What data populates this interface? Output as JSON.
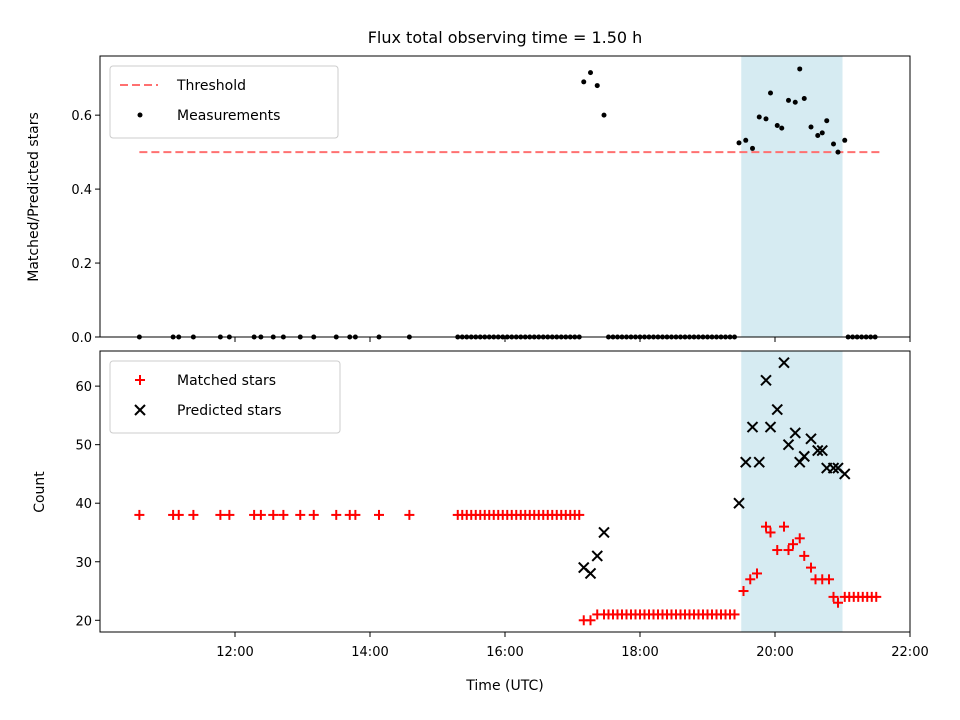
{
  "colors": {
    "threshold": "#ff7070",
    "measurement": "#000000",
    "matched": "#ff0000",
    "predicted": "#000000",
    "highlight": "#add8e6"
  },
  "chart_data": [
    {
      "type": "scatter",
      "title": "Flux total observing time = 1.50 h",
      "ylabel": "Matched/Predicted stars",
      "xlim": [
        "10:00",
        "22:00"
      ],
      "ylim": [
        0,
        0.76
      ],
      "y_ticks": [
        "0.0",
        "0.2",
        "0.4",
        "0.6"
      ],
      "legend_position": "top-left",
      "highlight_span": [
        "19:30",
        "21:00"
      ],
      "threshold": {
        "name": "Threshold",
        "value": 0.5,
        "x_range": [
          "10:35",
          "21:35"
        ]
      },
      "series": [
        {
          "name": "Measurements",
          "marker": "dot",
          "points": [
            [
              "10:35",
              0
            ],
            [
              "11:05",
              0
            ],
            [
              "11:10",
              0
            ],
            [
              "11:23",
              0
            ],
            [
              "11:47",
              0
            ],
            [
              "11:55",
              0
            ],
            [
              "12:17",
              0
            ],
            [
              "12:23",
              0
            ],
            [
              "12:34",
              0
            ],
            [
              "12:43",
              0
            ],
            [
              "12:58",
              0
            ],
            [
              "13:10",
              0
            ],
            [
              "13:30",
              0
            ],
            [
              "13:42",
              0
            ],
            [
              "13:47",
              0
            ],
            [
              "14:08",
              0
            ],
            [
              "14:35",
              0
            ],
            [
              "15:18",
              0
            ],
            [
              "15:22",
              0
            ],
            [
              "15:26",
              0
            ],
            [
              "15:30",
              0
            ],
            [
              "15:34",
              0
            ],
            [
              "15:38",
              0
            ],
            [
              "15:42",
              0
            ],
            [
              "15:46",
              0
            ],
            [
              "15:50",
              0
            ],
            [
              "15:54",
              0
            ],
            [
              "15:58",
              0
            ],
            [
              "16:02",
              0
            ],
            [
              "16:06",
              0
            ],
            [
              "16:10",
              0
            ],
            [
              "16:14",
              0
            ],
            [
              "16:18",
              0
            ],
            [
              "16:22",
              0
            ],
            [
              "16:26",
              0
            ],
            [
              "16:30",
              0
            ],
            [
              "16:34",
              0
            ],
            [
              "16:38",
              0
            ],
            [
              "16:42",
              0
            ],
            [
              "16:46",
              0
            ],
            [
              "16:50",
              0
            ],
            [
              "16:54",
              0
            ],
            [
              "16:58",
              0
            ],
            [
              "17:02",
              0
            ],
            [
              "17:06",
              0
            ],
            [
              "17:10",
              0.69
            ],
            [
              "17:16",
              0.715
            ],
            [
              "17:22",
              0.68
            ],
            [
              "17:28",
              0.6
            ],
            [
              "17:32",
              0
            ],
            [
              "17:36",
              0
            ],
            [
              "17:40",
              0
            ],
            [
              "17:44",
              0
            ],
            [
              "17:48",
              0
            ],
            [
              "17:52",
              0
            ],
            [
              "17:56",
              0
            ],
            [
              "18:00",
              0
            ],
            [
              "18:04",
              0
            ],
            [
              "18:08",
              0
            ],
            [
              "18:12",
              0
            ],
            [
              "18:16",
              0
            ],
            [
              "18:20",
              0
            ],
            [
              "18:24",
              0
            ],
            [
              "18:28",
              0
            ],
            [
              "18:32",
              0
            ],
            [
              "18:36",
              0
            ],
            [
              "18:40",
              0
            ],
            [
              "18:44",
              0
            ],
            [
              "18:48",
              0
            ],
            [
              "18:52",
              0
            ],
            [
              "18:56",
              0
            ],
            [
              "19:00",
              0
            ],
            [
              "19:04",
              0
            ],
            [
              "19:08",
              0
            ],
            [
              "19:12",
              0
            ],
            [
              "19:16",
              0
            ],
            [
              "19:20",
              0
            ],
            [
              "19:24",
              0
            ],
            [
              "19:28",
              0.525
            ],
            [
              "19:34",
              0.532
            ],
            [
              "19:40",
              0.51
            ],
            [
              "19:46",
              0.595
            ],
            [
              "19:52",
              0.59
            ],
            [
              "19:56",
              0.66
            ],
            [
              "20:02",
              0.572
            ],
            [
              "20:06",
              0.565
            ],
            [
              "20:12",
              0.64
            ],
            [
              "20:18",
              0.635
            ],
            [
              "20:22",
              0.725
            ],
            [
              "20:26",
              0.645
            ],
            [
              "20:32",
              0.568
            ],
            [
              "20:38",
              0.545
            ],
            [
              "20:42",
              0.552
            ],
            [
              "20:46",
              0.585
            ],
            [
              "20:52",
              0.522
            ],
            [
              "20:56",
              0.5
            ],
            [
              "21:02",
              0.532
            ],
            [
              "21:05",
              0
            ],
            [
              "21:09",
              0
            ],
            [
              "21:13",
              0
            ],
            [
              "21:17",
              0
            ],
            [
              "21:21",
              0
            ],
            [
              "21:25",
              0
            ],
            [
              "21:29",
              0
            ]
          ]
        }
      ]
    },
    {
      "type": "scatter",
      "xlabel": "Time (UTC)",
      "ylabel": "Count",
      "xlim": [
        "10:00",
        "22:00"
      ],
      "ylim": [
        18,
        66
      ],
      "x_ticks": [
        "12:00",
        "14:00",
        "16:00",
        "18:00",
        "20:00",
        "22:00"
      ],
      "y_ticks": [
        "20",
        "30",
        "40",
        "50",
        "60"
      ],
      "legend_position": "top-left",
      "highlight_span": [
        "19:30",
        "21:00"
      ],
      "series": [
        {
          "name": "Matched stars",
          "marker": "plus",
          "points": [
            [
              "10:35",
              38
            ],
            [
              "11:05",
              38
            ],
            [
              "11:10",
              38
            ],
            [
              "11:23",
              38
            ],
            [
              "11:47",
              38
            ],
            [
              "11:55",
              38
            ],
            [
              "12:17",
              38
            ],
            [
              "12:23",
              38
            ],
            [
              "12:34",
              38
            ],
            [
              "12:43",
              38
            ],
            [
              "12:58",
              38
            ],
            [
              "13:10",
              38
            ],
            [
              "13:30",
              38
            ],
            [
              "13:42",
              38
            ],
            [
              "13:47",
              38
            ],
            [
              "14:08",
              38
            ],
            [
              "14:35",
              38
            ],
            [
              "15:18",
              38
            ],
            [
              "15:22",
              38
            ],
            [
              "15:26",
              38
            ],
            [
              "15:30",
              38
            ],
            [
              "15:34",
              38
            ],
            [
              "15:38",
              38
            ],
            [
              "15:42",
              38
            ],
            [
              "15:46",
              38
            ],
            [
              "15:50",
              38
            ],
            [
              "15:54",
              38
            ],
            [
              "15:58",
              38
            ],
            [
              "16:02",
              38
            ],
            [
              "16:06",
              38
            ],
            [
              "16:10",
              38
            ],
            [
              "16:14",
              38
            ],
            [
              "16:18",
              38
            ],
            [
              "16:22",
              38
            ],
            [
              "16:26",
              38
            ],
            [
              "16:30",
              38
            ],
            [
              "16:34",
              38
            ],
            [
              "16:38",
              38
            ],
            [
              "16:42",
              38
            ],
            [
              "16:46",
              38
            ],
            [
              "16:50",
              38
            ],
            [
              "16:54",
              38
            ],
            [
              "16:58",
              38
            ],
            [
              "17:02",
              38
            ],
            [
              "17:06",
              38
            ],
            [
              "17:10",
              20
            ],
            [
              "17:16",
              20
            ],
            [
              "17:22",
              21
            ],
            [
              "17:28",
              21
            ],
            [
              "17:32",
              21
            ],
            [
              "17:36",
              21
            ],
            [
              "17:40",
              21
            ],
            [
              "17:44",
              21
            ],
            [
              "17:48",
              21
            ],
            [
              "17:52",
              21
            ],
            [
              "17:56",
              21
            ],
            [
              "18:00",
              21
            ],
            [
              "18:04",
              21
            ],
            [
              "18:08",
              21
            ],
            [
              "18:12",
              21
            ],
            [
              "18:16",
              21
            ],
            [
              "18:20",
              21
            ],
            [
              "18:24",
              21
            ],
            [
              "18:28",
              21
            ],
            [
              "18:32",
              21
            ],
            [
              "18:36",
              21
            ],
            [
              "18:40",
              21
            ],
            [
              "18:44",
              21
            ],
            [
              "18:48",
              21
            ],
            [
              "18:52",
              21
            ],
            [
              "18:56",
              21
            ],
            [
              "19:00",
              21
            ],
            [
              "19:04",
              21
            ],
            [
              "19:08",
              21
            ],
            [
              "19:12",
              21
            ],
            [
              "19:16",
              21
            ],
            [
              "19:20",
              21
            ],
            [
              "19:24",
              21
            ],
            [
              "19:32",
              25
            ],
            [
              "19:38",
              27
            ],
            [
              "19:44",
              28
            ],
            [
              "19:52",
              36
            ],
            [
              "19:56",
              35
            ],
            [
              "20:02",
              32
            ],
            [
              "20:08",
              36
            ],
            [
              "20:12",
              32
            ],
            [
              "20:16",
              33
            ],
            [
              "20:22",
              34
            ],
            [
              "20:26",
              31
            ],
            [
              "20:32",
              29
            ],
            [
              "20:36",
              27
            ],
            [
              "20:42",
              27
            ],
            [
              "20:48",
              27
            ],
            [
              "20:52",
              24
            ],
            [
              "20:56",
              23
            ],
            [
              "21:02",
              24
            ],
            [
              "21:06",
              24
            ],
            [
              "21:10",
              24
            ],
            [
              "21:14",
              24
            ],
            [
              "21:18",
              24
            ],
            [
              "21:22",
              24
            ],
            [
              "21:26",
              24
            ],
            [
              "21:30",
              24
            ]
          ]
        },
        {
          "name": "Predicted stars",
          "marker": "x",
          "points": [
            [
              "17:10",
              29
            ],
            [
              "17:16",
              28
            ],
            [
              "17:22",
              31
            ],
            [
              "17:28",
              35
            ],
            [
              "19:28",
              40
            ],
            [
              "19:34",
              47
            ],
            [
              "19:40",
              53
            ],
            [
              "19:46",
              47
            ],
            [
              "19:52",
              61
            ],
            [
              "19:56",
              53
            ],
            [
              "20:02",
              56
            ],
            [
              "20:08",
              64
            ],
            [
              "20:12",
              50
            ],
            [
              "20:18",
              52
            ],
            [
              "20:22",
              47
            ],
            [
              "20:26",
              48
            ],
            [
              "20:32",
              51
            ],
            [
              "20:38",
              49
            ],
            [
              "20:42",
              49
            ],
            [
              "20:46",
              46
            ],
            [
              "20:52",
              46
            ],
            [
              "20:56",
              46
            ],
            [
              "21:02",
              45
            ]
          ]
        }
      ]
    }
  ]
}
